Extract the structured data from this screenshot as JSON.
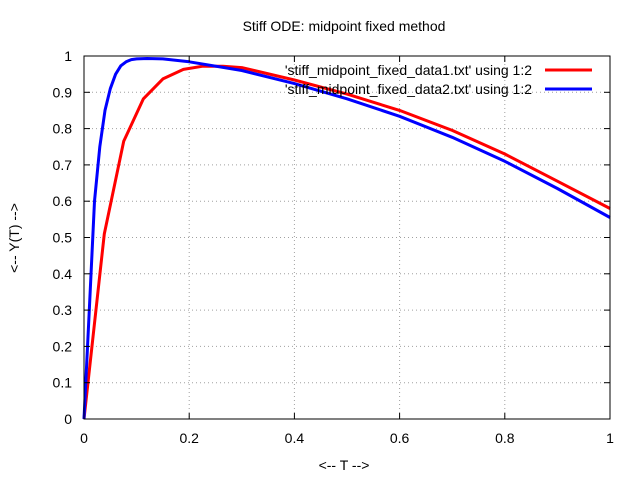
{
  "chart_data": {
    "type": "line",
    "title": "Stiff ODE: midpoint fixed method",
    "xlabel": "<-- T -->",
    "ylabel": "<-- Y(T) -->",
    "xlim": [
      0,
      1
    ],
    "ylim": [
      0,
      1
    ],
    "xticks": [
      0,
      0.2,
      0.4,
      0.6,
      0.8,
      1
    ],
    "xtick_labels": [
      "0",
      "0.2",
      "0.4",
      "0.6",
      "0.8",
      "1"
    ],
    "yticks": [
      0,
      0.1,
      0.2,
      0.3,
      0.4,
      0.5,
      0.6,
      0.7,
      0.8,
      0.9,
      1
    ],
    "ytick_labels": [
      "0",
      "0.1",
      "0.2",
      "0.3",
      "0.4",
      "0.5",
      "0.6",
      "0.7",
      "0.8",
      "0.9",
      "1"
    ],
    "grid": true,
    "legend_position": "top-right",
    "series": [
      {
        "name": "'stiff_midpoint_fixed_data1.txt' using 1:2",
        "color": "#ff0000",
        "x": [
          0,
          0.0385,
          0.0755,
          0.113,
          0.15,
          0.189,
          0.226,
          0.264,
          0.3,
          0.4,
          0.5,
          0.6,
          0.7,
          0.8,
          0.9,
          1.0
        ],
        "y": [
          0,
          0.51,
          0.765,
          0.882,
          0.937,
          0.963,
          0.972,
          0.972,
          0.968,
          0.934,
          0.895,
          0.85,
          0.795,
          0.73,
          0.655,
          0.58
        ]
      },
      {
        "name": "'stiff_midpoint_fixed_data2.txt' using 1:2",
        "color": "#0000ff",
        "x": [
          0,
          0.01,
          0.02,
          0.03,
          0.04,
          0.05,
          0.06,
          0.07,
          0.08,
          0.09,
          0.1,
          0.12,
          0.15,
          0.2,
          0.3,
          0.4,
          0.5,
          0.6,
          0.7,
          0.8,
          0.9,
          1.0
        ],
        "y": [
          0,
          0.3,
          0.6,
          0.75,
          0.85,
          0.91,
          0.95,
          0.973,
          0.984,
          0.99,
          0.992,
          0.993,
          0.992,
          0.984,
          0.96,
          0.924,
          0.882,
          0.834,
          0.776,
          0.71,
          0.635,
          0.555
        ]
      }
    ]
  }
}
